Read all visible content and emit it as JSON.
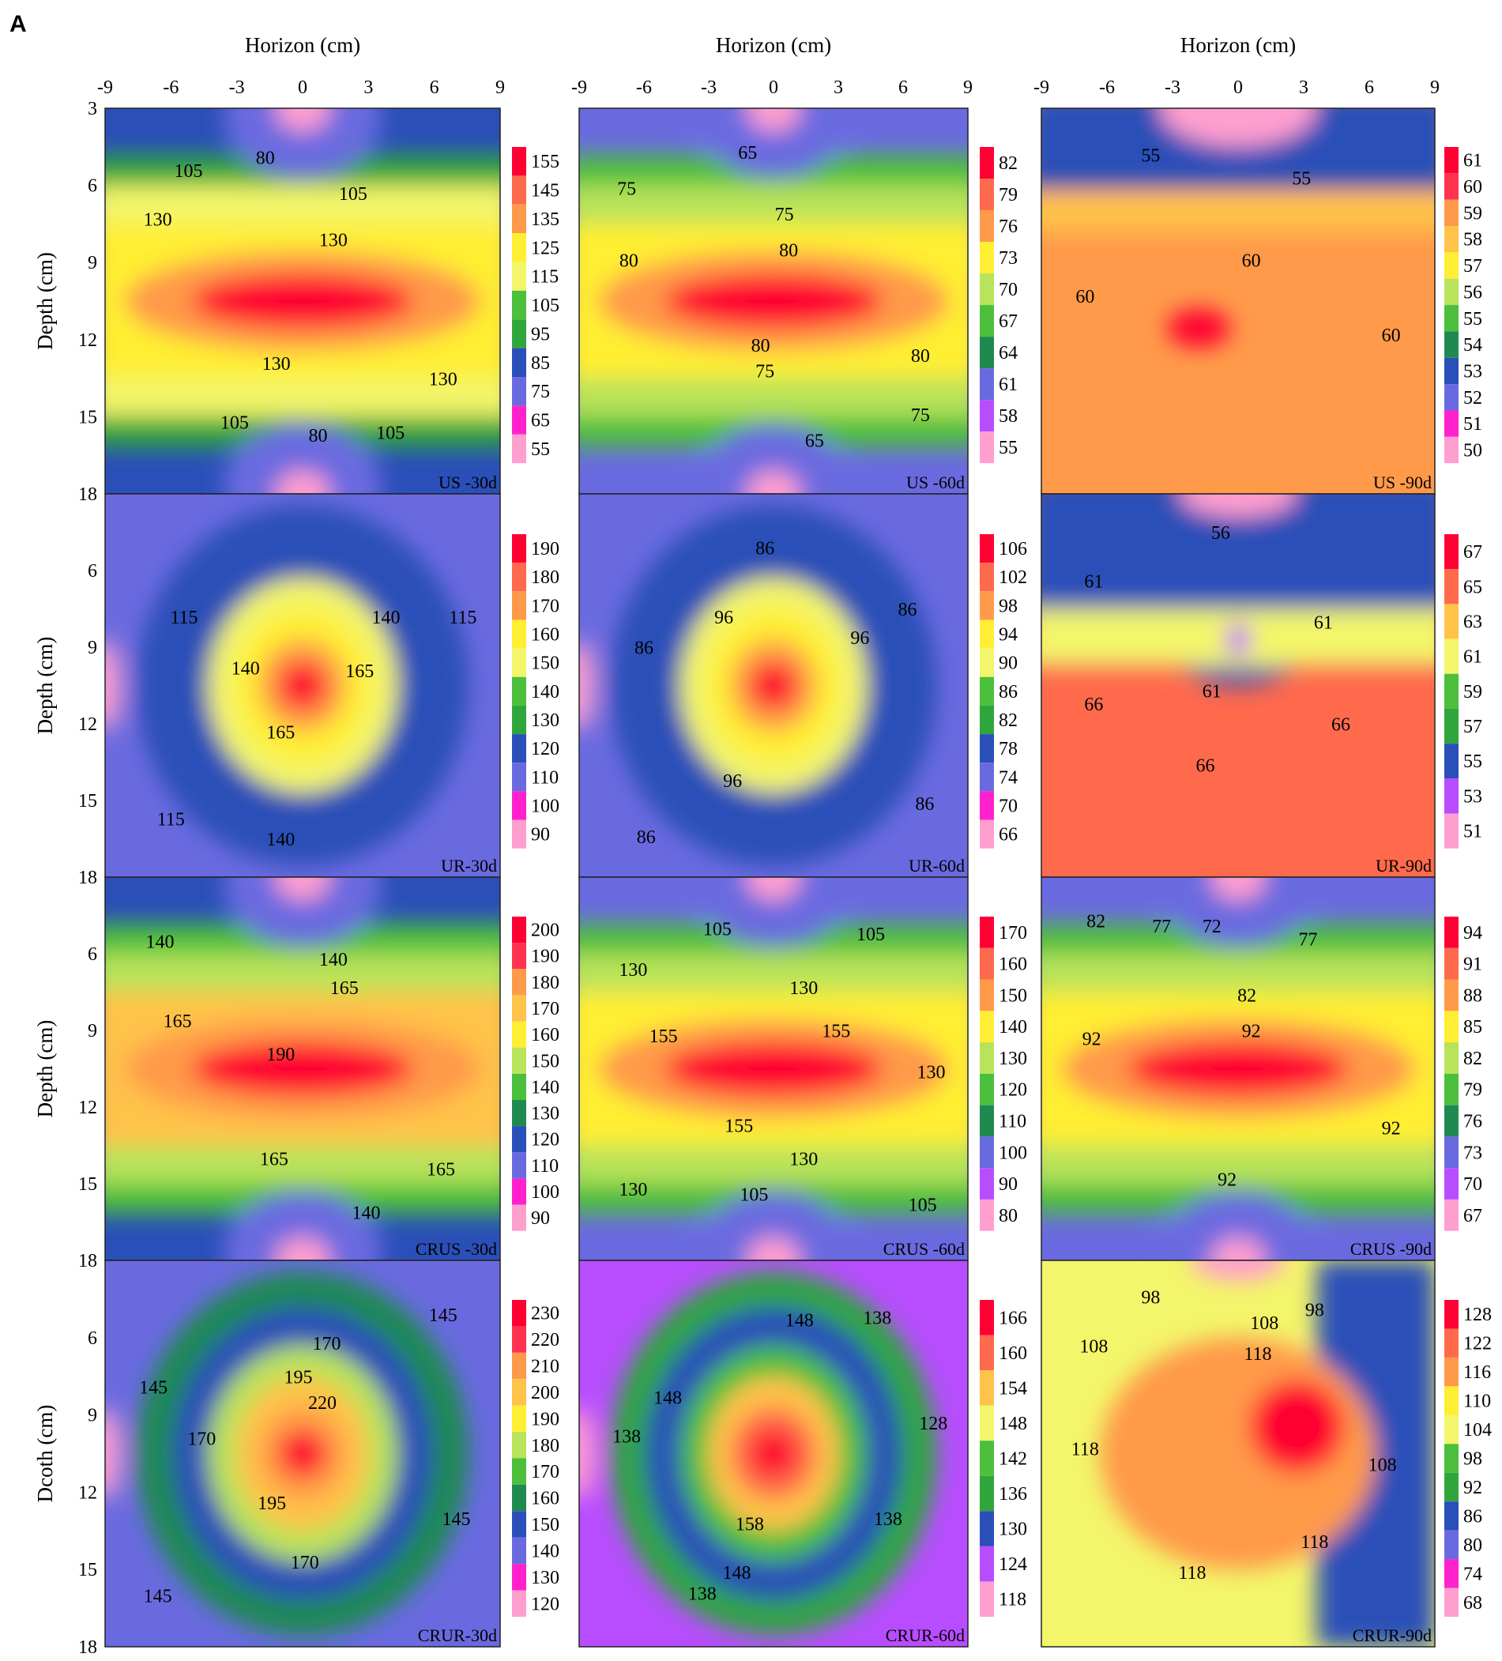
{
  "figure": {
    "panel_letter": "A",
    "x_axis_label": "Horizon (cm)",
    "y_axis_labels": [
      "Depth (cm)",
      "Depth (cm)",
      "Depth (cm)",
      "Dcoth (cm)"
    ],
    "x_ticks": [
      "-9",
      "-6",
      "-3",
      "0",
      "3",
      "6",
      "9"
    ],
    "y_ticks_first_row": [
      "3",
      "6",
      "9",
      "12",
      "15",
      "18"
    ],
    "y_ticks_other_rows": [
      "6",
      "9",
      "12",
      "15",
      "18"
    ]
  },
  "chart_data": [
    {
      "type": "heatmap",
      "label": "US -30d",
      "xlim": [
        -9,
        9
      ],
      "ylim": [
        3,
        18
      ],
      "pattern": "band",
      "legend": [
        155,
        145,
        135,
        125,
        115,
        105,
        95,
        85,
        75,
        65,
        55
      ],
      "contour_labels": [
        {
          "text": "105",
          "x": -5.2,
          "y": 5.5
        },
        {
          "text": "80",
          "x": -1.7,
          "y": 5.0
        },
        {
          "text": "105",
          "x": 2.3,
          "y": 6.4
        },
        {
          "text": "130",
          "x": -6.6,
          "y": 7.4
        },
        {
          "text": "130",
          "x": 1.4,
          "y": 8.2
        },
        {
          "text": "130",
          "x": -1.2,
          "y": 13.0
        },
        {
          "text": "130",
          "x": 6.4,
          "y": 13.6
        },
        {
          "text": "105",
          "x": -3.1,
          "y": 15.3
        },
        {
          "text": "80",
          "x": 0.7,
          "y": 15.8
        },
        {
          "text": "105",
          "x": 4.0,
          "y": 15.7
        }
      ]
    },
    {
      "type": "heatmap",
      "label": "US -60d",
      "xlim": [
        -9,
        9
      ],
      "ylim": [
        3,
        18
      ],
      "pattern": "band",
      "legend": [
        82,
        79,
        76,
        73,
        70,
        67,
        64,
        61,
        58,
        55
      ],
      "contour_labels": [
        {
          "text": "65",
          "x": -1.2,
          "y": 4.8
        },
        {
          "text": "75",
          "x": -6.8,
          "y": 6.2
        },
        {
          "text": "75",
          "x": 0.5,
          "y": 7.2
        },
        {
          "text": "80",
          "x": -6.7,
          "y": 9.0
        },
        {
          "text": "80",
          "x": 0.7,
          "y": 8.6
        },
        {
          "text": "80",
          "x": -0.6,
          "y": 12.3
        },
        {
          "text": "80",
          "x": 6.8,
          "y": 12.7
        },
        {
          "text": "75",
          "x": -0.4,
          "y": 13.3
        },
        {
          "text": "75",
          "x": 6.8,
          "y": 15.0
        },
        {
          "text": "65",
          "x": 1.9,
          "y": 16.0
        }
      ]
    },
    {
      "type": "heatmap",
      "label": "US -90d",
      "xlim": [
        -9,
        9
      ],
      "ylim": [
        3,
        18
      ],
      "pattern": "lower",
      "legend": [
        61,
        60,
        59,
        58,
        57,
        56,
        55,
        54,
        53,
        52,
        51,
        50
      ],
      "contour_labels": [
        {
          "text": "55",
          "x": -4.0,
          "y": 4.9
        },
        {
          "text": "55",
          "x": 2.9,
          "y": 5.8
        },
        {
          "text": "60",
          "x": 0.6,
          "y": 9.0
        },
        {
          "text": "60",
          "x": -7.0,
          "y": 10.4
        },
        {
          "text": "60",
          "x": 7.0,
          "y": 11.9
        }
      ]
    },
    {
      "type": "heatmap",
      "label": "UR-30d",
      "xlim": [
        -9,
        9
      ],
      "ylim": [
        3,
        18
      ],
      "pattern": "blob",
      "legend": [
        190,
        180,
        170,
        160,
        150,
        140,
        130,
        120,
        110,
        100,
        90
      ],
      "contour_labels": [
        {
          "text": "115",
          "x": -5.4,
          "y": 7.9
        },
        {
          "text": "140",
          "x": 3.8,
          "y": 7.9
        },
        {
          "text": "115",
          "x": 7.3,
          "y": 7.9
        },
        {
          "text": "140",
          "x": -2.6,
          "y": 9.9
        },
        {
          "text": "165",
          "x": 2.6,
          "y": 10.0
        },
        {
          "text": "165",
          "x": -1.0,
          "y": 12.4
        },
        {
          "text": "115",
          "x": -6.0,
          "y": 15.8
        },
        {
          "text": "140",
          "x": -1.0,
          "y": 16.6
        }
      ]
    },
    {
      "type": "heatmap",
      "label": "UR-60d",
      "xlim": [
        -9,
        9
      ],
      "ylim": [
        3,
        18
      ],
      "pattern": "blob",
      "legend": [
        106,
        102,
        98,
        94,
        90,
        86,
        82,
        78,
        74,
        70,
        66
      ],
      "contour_labels": [
        {
          "text": "86",
          "x": -0.4,
          "y": 5.2
        },
        {
          "text": "96",
          "x": -2.3,
          "y": 7.9
        },
        {
          "text": "86",
          "x": 6.2,
          "y": 7.6
        },
        {
          "text": "96",
          "x": 4.0,
          "y": 8.7
        },
        {
          "text": "86",
          "x": -6.0,
          "y": 9.1
        },
        {
          "text": "96",
          "x": -1.9,
          "y": 14.3
        },
        {
          "text": "86",
          "x": 7.0,
          "y": 15.2
        },
        {
          "text": "86",
          "x": -5.9,
          "y": 16.5
        }
      ]
    },
    {
      "type": "heatmap",
      "label": "UR-90d",
      "xlim": [
        -9,
        9
      ],
      "ylim": [
        3,
        18
      ],
      "pattern": "vshape",
      "legend": [
        67,
        65,
        63,
        61,
        59,
        57,
        55,
        53,
        51
      ],
      "contour_labels": [
        {
          "text": "56",
          "x": -0.8,
          "y": 4.6
        },
        {
          "text": "61",
          "x": -6.6,
          "y": 6.5
        },
        {
          "text": "61",
          "x": 3.9,
          "y": 8.1
        },
        {
          "text": "61",
          "x": -1.2,
          "y": 10.8
        },
        {
          "text": "66",
          "x": -6.6,
          "y": 11.3
        },
        {
          "text": "66",
          "x": 4.7,
          "y": 12.1
        },
        {
          "text": "66",
          "x": -1.5,
          "y": 13.7
        }
      ]
    },
    {
      "type": "heatmap",
      "label": "CRUS -30d",
      "xlim": [
        -9,
        9
      ],
      "ylim": [
        3,
        18
      ],
      "pattern": "band",
      "legend": [
        200,
        190,
        180,
        170,
        160,
        150,
        140,
        130,
        120,
        110,
        100,
        90
      ],
      "contour_labels": [
        {
          "text": "140",
          "x": -6.5,
          "y": 5.6
        },
        {
          "text": "140",
          "x": 1.4,
          "y": 6.3
        },
        {
          "text": "165",
          "x": 1.9,
          "y": 7.4
        },
        {
          "text": "165",
          "x": -5.7,
          "y": 8.7
        },
        {
          "text": "190",
          "x": -1.0,
          "y": 10.0
        },
        {
          "text": "165",
          "x": -1.3,
          "y": 14.1
        },
        {
          "text": "165",
          "x": 6.3,
          "y": 14.5
        },
        {
          "text": "140",
          "x": 2.9,
          "y": 16.2
        }
      ]
    },
    {
      "type": "heatmap",
      "label": "CRUS -60d",
      "xlim": [
        -9,
        9
      ],
      "ylim": [
        3,
        18
      ],
      "pattern": "band",
      "legend": [
        170,
        160,
        150,
        140,
        130,
        120,
        110,
        100,
        90,
        80
      ],
      "contour_labels": [
        {
          "text": "105",
          "x": -2.6,
          "y": 5.1
        },
        {
          "text": "105",
          "x": 4.5,
          "y": 5.3
        },
        {
          "text": "130",
          "x": -6.5,
          "y": 6.7
        },
        {
          "text": "130",
          "x": 1.4,
          "y": 7.4
        },
        {
          "text": "155",
          "x": -5.1,
          "y": 9.3
        },
        {
          "text": "155",
          "x": 2.9,
          "y": 9.1
        },
        {
          "text": "130",
          "x": 7.3,
          "y": 10.7
        },
        {
          "text": "155",
          "x": -1.6,
          "y": 12.8
        },
        {
          "text": "130",
          "x": 1.4,
          "y": 14.1
        },
        {
          "text": "130",
          "x": -6.5,
          "y": 15.3
        },
        {
          "text": "105",
          "x": -0.9,
          "y": 15.5
        },
        {
          "text": "105",
          "x": 6.9,
          "y": 15.9
        }
      ]
    },
    {
      "type": "heatmap",
      "label": "CRUS -90d",
      "xlim": [
        -9,
        9
      ],
      "ylim": [
        3,
        18
      ],
      "pattern": "band",
      "legend": [
        94,
        91,
        88,
        85,
        82,
        79,
        76,
        73,
        70,
        67
      ],
      "contour_labels": [
        {
          "text": "82",
          "x": -6.5,
          "y": 4.8
        },
        {
          "text": "77",
          "x": -3.5,
          "y": 5.0
        },
        {
          "text": "72",
          "x": -1.2,
          "y": 5.0
        },
        {
          "text": "77",
          "x": 3.2,
          "y": 5.5
        },
        {
          "text": "82",
          "x": 0.4,
          "y": 7.7
        },
        {
          "text": "92",
          "x": -6.7,
          "y": 9.4
        },
        {
          "text": "92",
          "x": 0.6,
          "y": 9.1
        },
        {
          "text": "92",
          "x": 7.0,
          "y": 12.9
        },
        {
          "text": "92",
          "x": -0.5,
          "y": 14.9
        }
      ]
    },
    {
      "type": "heatmap",
      "label": "CRUR-30d",
      "xlim": [
        -9,
        9
      ],
      "ylim": [
        3,
        18
      ],
      "pattern": "blob",
      "legend": [
        230,
        220,
        210,
        200,
        190,
        180,
        170,
        160,
        150,
        140,
        130,
        120
      ],
      "contour_labels": [
        {
          "text": "145",
          "x": 6.4,
          "y": 5.2
        },
        {
          "text": "170",
          "x": 1.1,
          "y": 6.3
        },
        {
          "text": "195",
          "x": -0.2,
          "y": 7.6
        },
        {
          "text": "145",
          "x": -6.8,
          "y": 8.0
        },
        {
          "text": "220",
          "x": 0.9,
          "y": 8.6
        },
        {
          "text": "170",
          "x": -4.6,
          "y": 10.0
        },
        {
          "text": "195",
          "x": -1.4,
          "y": 12.5
        },
        {
          "text": "145",
          "x": 7.0,
          "y": 13.1
        },
        {
          "text": "170",
          "x": 0.1,
          "y": 14.8
        },
        {
          "text": "145",
          "x": -6.6,
          "y": 16.1
        }
      ]
    },
    {
      "type": "heatmap",
      "label": "CRUR-60d",
      "xlim": [
        -9,
        9
      ],
      "ylim": [
        3,
        18
      ],
      "pattern": "blob",
      "legend": [
        166,
        160,
        154,
        148,
        142,
        136,
        130,
        124,
        118
      ],
      "contour_labels": [
        {
          "text": "148",
          "x": 1.2,
          "y": 5.4
        },
        {
          "text": "138",
          "x": 4.8,
          "y": 5.3
        },
        {
          "text": "148",
          "x": -4.9,
          "y": 8.4
        },
        {
          "text": "138",
          "x": -6.8,
          "y": 9.9
        },
        {
          "text": "128",
          "x": 7.4,
          "y": 9.4
        },
        {
          "text": "158",
          "x": -1.1,
          "y": 13.3
        },
        {
          "text": "138",
          "x": 5.3,
          "y": 13.1
        },
        {
          "text": "148",
          "x": -1.7,
          "y": 15.2
        },
        {
          "text": "138",
          "x": -3.3,
          "y": 16.0
        }
      ]
    },
    {
      "type": "heatmap",
      "label": "CRUR-90d",
      "xlim": [
        -9,
        9
      ],
      "ylim": [
        3,
        18
      ],
      "pattern": "offset",
      "legend": [
        128,
        122,
        116,
        110,
        104,
        98,
        92,
        86,
        80,
        74,
        68
      ],
      "contour_labels": [
        {
          "text": "98",
          "x": -4.0,
          "y": 4.5
        },
        {
          "text": "98",
          "x": 3.5,
          "y": 5.0
        },
        {
          "text": "108",
          "x": 1.2,
          "y": 5.5
        },
        {
          "text": "108",
          "x": -6.6,
          "y": 6.4
        },
        {
          "text": "118",
          "x": 0.9,
          "y": 6.7
        },
        {
          "text": "118",
          "x": -7.0,
          "y": 10.4
        },
        {
          "text": "108",
          "x": 6.6,
          "y": 11.0
        },
        {
          "text": "118",
          "x": -2.1,
          "y": 15.2
        },
        {
          "text": "118",
          "x": 3.5,
          "y": 14.0
        }
      ]
    }
  ]
}
